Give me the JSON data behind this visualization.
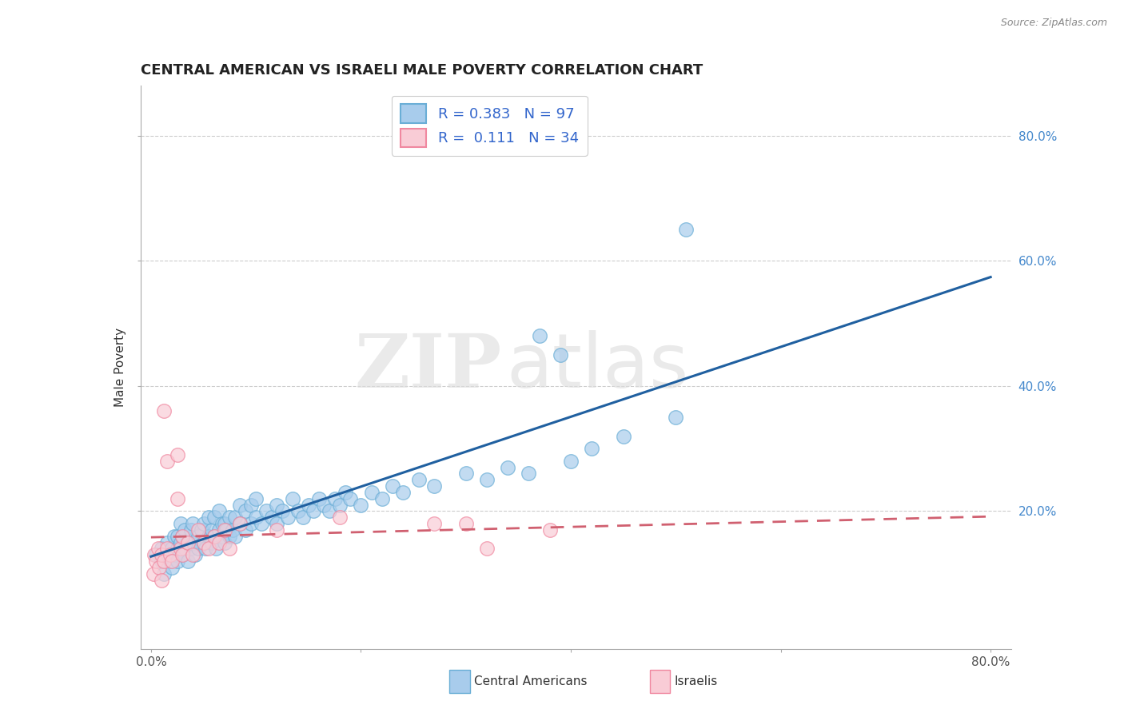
{
  "title": "CENTRAL AMERICAN VS ISRAELI MALE POVERTY CORRELATION CHART",
  "source": "Source: ZipAtlas.com",
  "ylabel": "Male Poverty",
  "xlim": [
    -0.01,
    0.82
  ],
  "ylim": [
    -0.02,
    0.88
  ],
  "xtick_labels": [
    "0.0%",
    "",
    "",
    "",
    "80.0%"
  ],
  "xtick_vals": [
    0.0,
    0.2,
    0.4,
    0.6,
    0.8
  ],
  "ytick_labels": [
    "20.0%",
    "40.0%",
    "60.0%",
    "80.0%"
  ],
  "ytick_vals": [
    0.2,
    0.4,
    0.6,
    0.8
  ],
  "blue_color": "#a8ccec",
  "blue_edge_color": "#6aaed6",
  "pink_color": "#f9ccd6",
  "pink_edge_color": "#f088a0",
  "blue_line_color": "#2060a0",
  "pink_line_color": "#d06070",
  "r_blue": 0.383,
  "n_blue": 97,
  "r_pink": 0.111,
  "n_pink": 34,
  "legend_label_blue": "Central Americans",
  "legend_label_pink": "Israelis",
  "watermark_zip": "ZIP",
  "watermark_atlas": "atlas",
  "blue_scatter": [
    [
      0.005,
      0.13
    ],
    [
      0.01,
      0.12
    ],
    [
      0.01,
      0.14
    ],
    [
      0.012,
      0.1
    ],
    [
      0.015,
      0.15
    ],
    [
      0.015,
      0.13
    ],
    [
      0.018,
      0.12
    ],
    [
      0.02,
      0.14
    ],
    [
      0.02,
      0.11
    ],
    [
      0.022,
      0.13
    ],
    [
      0.022,
      0.16
    ],
    [
      0.025,
      0.12
    ],
    [
      0.025,
      0.14
    ],
    [
      0.025,
      0.16
    ],
    [
      0.028,
      0.15
    ],
    [
      0.028,
      0.18
    ],
    [
      0.03,
      0.13
    ],
    [
      0.03,
      0.16
    ],
    [
      0.032,
      0.14
    ],
    [
      0.032,
      0.17
    ],
    [
      0.035,
      0.12
    ],
    [
      0.035,
      0.15
    ],
    [
      0.038,
      0.14
    ],
    [
      0.038,
      0.17
    ],
    [
      0.04,
      0.15
    ],
    [
      0.04,
      0.18
    ],
    [
      0.042,
      0.13
    ],
    [
      0.045,
      0.16
    ],
    [
      0.045,
      0.14
    ],
    [
      0.048,
      0.17
    ],
    [
      0.05,
      0.15
    ],
    [
      0.05,
      0.18
    ],
    [
      0.052,
      0.14
    ],
    [
      0.055,
      0.16
    ],
    [
      0.055,
      0.19
    ],
    [
      0.058,
      0.15
    ],
    [
      0.058,
      0.17
    ],
    [
      0.06,
      0.16
    ],
    [
      0.06,
      0.19
    ],
    [
      0.062,
      0.14
    ],
    [
      0.065,
      0.17
    ],
    [
      0.065,
      0.2
    ],
    [
      0.068,
      0.16
    ],
    [
      0.068,
      0.18
    ],
    [
      0.07,
      0.15
    ],
    [
      0.07,
      0.18
    ],
    [
      0.072,
      0.17
    ],
    [
      0.075,
      0.16
    ],
    [
      0.075,
      0.19
    ],
    [
      0.078,
      0.17
    ],
    [
      0.08,
      0.16
    ],
    [
      0.08,
      0.19
    ],
    [
      0.085,
      0.18
    ],
    [
      0.085,
      0.21
    ],
    [
      0.09,
      0.17
    ],
    [
      0.09,
      0.2
    ],
    [
      0.095,
      0.18
    ],
    [
      0.095,
      0.21
    ],
    [
      0.1,
      0.19
    ],
    [
      0.1,
      0.22
    ],
    [
      0.105,
      0.18
    ],
    [
      0.11,
      0.2
    ],
    [
      0.115,
      0.19
    ],
    [
      0.12,
      0.21
    ],
    [
      0.12,
      0.18
    ],
    [
      0.125,
      0.2
    ],
    [
      0.13,
      0.19
    ],
    [
      0.135,
      0.22
    ],
    [
      0.14,
      0.2
    ],
    [
      0.145,
      0.19
    ],
    [
      0.15,
      0.21
    ],
    [
      0.155,
      0.2
    ],
    [
      0.16,
      0.22
    ],
    [
      0.165,
      0.21
    ],
    [
      0.17,
      0.2
    ],
    [
      0.175,
      0.22
    ],
    [
      0.18,
      0.21
    ],
    [
      0.185,
      0.23
    ],
    [
      0.19,
      0.22
    ],
    [
      0.2,
      0.21
    ],
    [
      0.21,
      0.23
    ],
    [
      0.22,
      0.22
    ],
    [
      0.23,
      0.24
    ],
    [
      0.24,
      0.23
    ],
    [
      0.255,
      0.25
    ],
    [
      0.27,
      0.24
    ],
    [
      0.3,
      0.26
    ],
    [
      0.32,
      0.25
    ],
    [
      0.34,
      0.27
    ],
    [
      0.36,
      0.26
    ],
    [
      0.37,
      0.48
    ],
    [
      0.39,
      0.45
    ],
    [
      0.4,
      0.28
    ],
    [
      0.42,
      0.3
    ],
    [
      0.45,
      0.32
    ],
    [
      0.5,
      0.35
    ],
    [
      0.51,
      0.65
    ]
  ],
  "pink_scatter": [
    [
      0.002,
      0.1
    ],
    [
      0.003,
      0.13
    ],
    [
      0.005,
      0.12
    ],
    [
      0.007,
      0.14
    ],
    [
      0.008,
      0.11
    ],
    [
      0.01,
      0.13
    ],
    [
      0.01,
      0.09
    ],
    [
      0.012,
      0.12
    ],
    [
      0.012,
      0.36
    ],
    [
      0.015,
      0.14
    ],
    [
      0.015,
      0.28
    ],
    [
      0.018,
      0.13
    ],
    [
      0.02,
      0.12
    ],
    [
      0.025,
      0.22
    ],
    [
      0.025,
      0.29
    ],
    [
      0.028,
      0.14
    ],
    [
      0.03,
      0.13
    ],
    [
      0.03,
      0.16
    ],
    [
      0.035,
      0.15
    ],
    [
      0.04,
      0.13
    ],
    [
      0.045,
      0.17
    ],
    [
      0.05,
      0.15
    ],
    [
      0.055,
      0.14
    ],
    [
      0.06,
      0.16
    ],
    [
      0.065,
      0.15
    ],
    [
      0.07,
      0.17
    ],
    [
      0.075,
      0.14
    ],
    [
      0.085,
      0.18
    ],
    [
      0.12,
      0.17
    ],
    [
      0.18,
      0.19
    ],
    [
      0.27,
      0.18
    ],
    [
      0.3,
      0.18
    ],
    [
      0.32,
      0.14
    ],
    [
      0.38,
      0.17
    ]
  ]
}
